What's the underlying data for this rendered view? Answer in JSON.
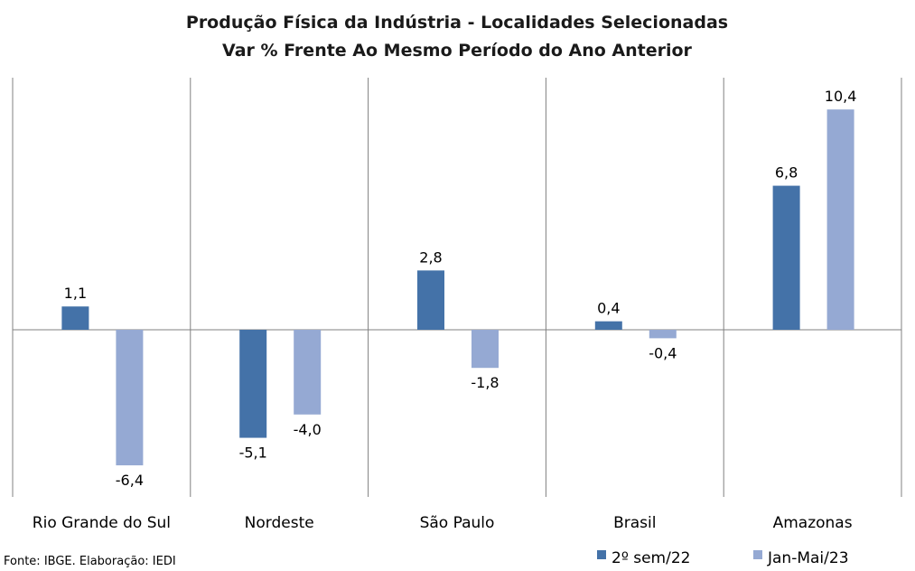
{
  "chart_data": {
    "type": "bar",
    "title": "Produção Física da Indústria - Localidades Selecionadas",
    "subtitle": "Var % Frente Ao Mesmo Período do Ano Anterior",
    "categories": [
      "Rio Grande do Sul",
      "Nordeste",
      "São Paulo",
      "Brasil",
      "Amazonas"
    ],
    "series": [
      {
        "name": "2º sem/22",
        "color": "#4472A8",
        "values": [
          1.1,
          -5.1,
          2.8,
          0.4,
          6.8
        ],
        "labels": [
          "1,1",
          "-5,1",
          "2,8",
          "0,4",
          "6,8"
        ]
      },
      {
        "name": "Jan-Mai/23",
        "color": "#95A9D3",
        "values": [
          -6.4,
          -4.0,
          -1.8,
          -0.4,
          10.4
        ],
        "labels": [
          "-6,4",
          "-4,0",
          "-1,8",
          "-0,4",
          "10,4"
        ]
      }
    ],
    "ylim": [
      -7.6,
      11.9
    ],
    "grid": false,
    "legend": "bottom-right",
    "source": "Fonte: IBGE. Elaboração: IEDI"
  }
}
